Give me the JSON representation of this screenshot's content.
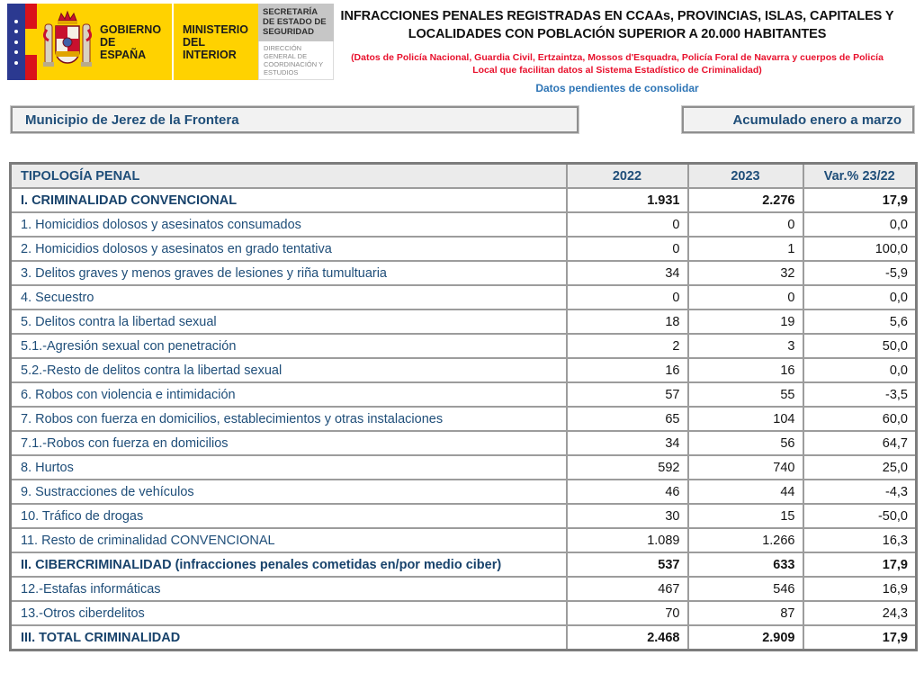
{
  "logo": {
    "government": "GOBIERNO DE ESPAÑA",
    "ministry": "MINISTERIO DEL INTERIOR",
    "secretary": "SECRETARÍA DE ESTADO DE SEGURIDAD",
    "direction": "DIRECCIÓN GENERAL DE COORDINACIÓN Y ESTUDIOS"
  },
  "header": {
    "title_line1": "INFRACCIONES PENALES REGISTRADAS EN CCAAs, PROVINCIAS, ISLAS, CAPITALES Y",
    "title_line2": "LOCALIDADES CON POBLACIÓN SUPERIOR A 20.000 HABITANTES",
    "sources_line1": "(Datos de Policía Nacional, Guardia Civil, Ertzaintza, Mossos d'Esquadra, Policía Foral de Navarra y cuerpos de Policía",
    "sources_line2": "Local que facilitan datos al Sistema Estadístico de Criminalidad)",
    "pending_note": "Datos pendientes de consolidar"
  },
  "filters": {
    "municipality": "Municipio de Jerez de la Frontera",
    "period": "Acumulado enero a marzo"
  },
  "table": {
    "columns": [
      "TIPOLOGÍA PENAL",
      "2022",
      "2023",
      "Var.% 23/22"
    ],
    "rows": [
      {
        "label": "I. CRIMINALIDAD CONVENCIONAL",
        "y2022": "1.931",
        "y2023": "2.276",
        "var": "17,9",
        "bold": true
      },
      {
        "label": "1. Homicidios dolosos y asesinatos consumados",
        "y2022": "0",
        "y2023": "0",
        "var": "0,0",
        "bold": false
      },
      {
        "label": "2. Homicidios dolosos y asesinatos en grado tentativa",
        "y2022": "0",
        "y2023": "1",
        "var": "100,0",
        "bold": false
      },
      {
        "label": "3. Delitos graves y menos graves de lesiones y riña tumultuaria",
        "y2022": "34",
        "y2023": "32",
        "var": "-5,9",
        "bold": false
      },
      {
        "label": "4. Secuestro",
        "y2022": "0",
        "y2023": "0",
        "var": "0,0",
        "bold": false
      },
      {
        "label": "5. Delitos contra la libertad sexual",
        "y2022": "18",
        "y2023": "19",
        "var": "5,6",
        "bold": false
      },
      {
        "label": "5.1.-Agresión sexual con penetración",
        "y2022": "2",
        "y2023": "3",
        "var": "50,0",
        "bold": false
      },
      {
        "label": "5.2.-Resto de delitos contra la libertad sexual",
        "y2022": "16",
        "y2023": "16",
        "var": "0,0",
        "bold": false
      },
      {
        "label": "6. Robos con violencia e intimidación",
        "y2022": "57",
        "y2023": "55",
        "var": "-3,5",
        "bold": false
      },
      {
        "label": "7. Robos con fuerza en domicilios, establecimientos y otras instalaciones",
        "y2022": "65",
        "y2023": "104",
        "var": "60,0",
        "bold": false
      },
      {
        "label": "7.1.-Robos con fuerza en domicilios",
        "y2022": "34",
        "y2023": "56",
        "var": "64,7",
        "bold": false
      },
      {
        "label": "8. Hurtos",
        "y2022": "592",
        "y2023": "740",
        "var": "25,0",
        "bold": false
      },
      {
        "label": "9. Sustracciones de vehículos",
        "y2022": "46",
        "y2023": "44",
        "var": "-4,3",
        "bold": false
      },
      {
        "label": "10. Tráfico de drogas",
        "y2022": "30",
        "y2023": "15",
        "var": "-50,0",
        "bold": false
      },
      {
        "label": "11. Resto de criminalidad CONVENCIONAL",
        "y2022": "1.089",
        "y2023": "1.266",
        "var": "16,3",
        "bold": false
      },
      {
        "label": "II. CIBERCRIMINALIDAD (infracciones penales cometidas en/por medio ciber)",
        "y2022": "537",
        "y2023": "633",
        "var": "17,9",
        "bold": true
      },
      {
        "label": "12.-Estafas informáticas",
        "y2022": "467",
        "y2023": "546",
        "var": "16,9",
        "bold": false
      },
      {
        "label": "13.-Otros ciberdelitos",
        "y2022": "70",
        "y2023": "87",
        "var": "24,3",
        "bold": false
      },
      {
        "label": "III. TOTAL CRIMINALIDAD",
        "y2022": "2.468",
        "y2023": "2.909",
        "var": "17,9",
        "bold": true
      }
    ]
  },
  "colors": {
    "label_blue": "#1F4E79",
    "note_blue": "#2E75B6",
    "alert_red": "#E8112D",
    "logo_yellow": "#FFD200",
    "logo_blue": "#2B3990",
    "flag_red": "#DA121A",
    "header_bg": "#EBEBEB"
  }
}
